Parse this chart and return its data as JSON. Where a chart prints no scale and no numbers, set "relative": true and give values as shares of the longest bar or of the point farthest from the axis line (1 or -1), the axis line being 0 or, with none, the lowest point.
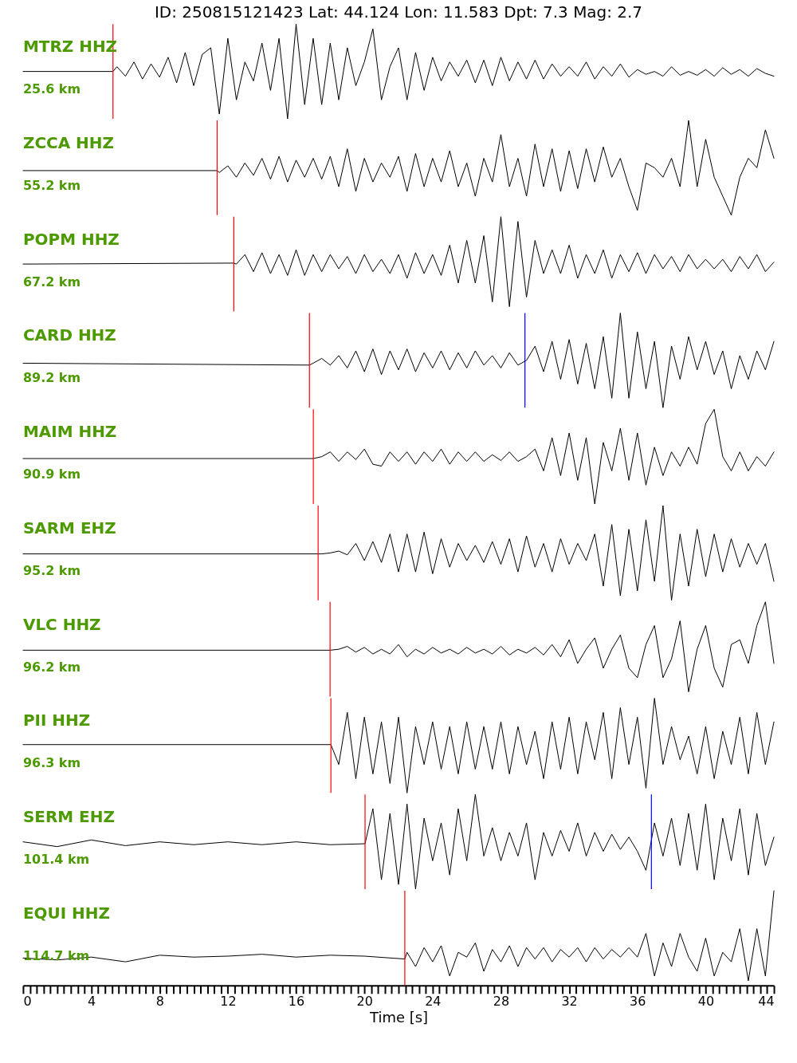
{
  "chart_data": [
    {
      "type": "line",
      "relative": true,
      "title": "ID: 250815121423 Lat:  44.124 Lon:  11.583 Dpt:     7.3 Mag:   2.7",
      "xlim": [
        0,
        44
      ],
      "tick_labels": false,
      "annotations": [
        "MTRZ HHZ",
        "25.6 km"
      ],
      "ref_lines": [
        {
          "axis": "x",
          "value": 5.27,
          "color": "#ff0000"
        }
      ],
      "series": [
        {
          "color": "#000000",
          "x": [
            0,
            5.27,
            5.5,
            6,
            6.5,
            7,
            7.5,
            8,
            8.5,
            9,
            9.5,
            10,
            10.5,
            11,
            11.5,
            12,
            12.5,
            13,
            13.5,
            14,
            14.5,
            15,
            15.5,
            16,
            16.5,
            17,
            17.5,
            18,
            18.5,
            19,
            19.5,
            20,
            20.5,
            21,
            21.5,
            22,
            22.5,
            23,
            23.5,
            24,
            24.5,
            25,
            25.5,
            26,
            26.5,
            27,
            27.5,
            28,
            28.5,
            29,
            29.5,
            30,
            30.5,
            31,
            31.5,
            32,
            32.5,
            33,
            33.5,
            34,
            34.5,
            35,
            35.5,
            36,
            36.5,
            37,
            37.5,
            38,
            38.5,
            39,
            39.5,
            40,
            40.5,
            41,
            41.5,
            42,
            42.5,
            43,
            43.5,
            44
          ],
          "values": [
            0.5,
            0.5,
            0.55,
            0.45,
            0.6,
            0.42,
            0.58,
            0.44,
            0.65,
            0.38,
            0.7,
            0.35,
            0.68,
            0.75,
            0.05,
            0.85,
            0.2,
            0.6,
            0.4,
            0.8,
            0.3,
            0.85,
            0,
            1,
            0.15,
            0.85,
            0.15,
            0.8,
            0.2,
            0.75,
            0.35,
            0.6,
            0.95,
            0.2,
            0.55,
            0.75,
            0.2,
            0.7,
            0.3,
            0.65,
            0.4,
            0.6,
            0.45,
            0.62,
            0.38,
            0.62,
            0.35,
            0.65,
            0.4,
            0.6,
            0.42,
            0.62,
            0.42,
            0.58,
            0.45,
            0.55,
            0.45,
            0.6,
            0.42,
            0.55,
            0.45,
            0.58,
            0.44,
            0.52,
            0.47,
            0.5,
            0.45,
            0.55,
            0.46,
            0.5,
            0.46,
            0.52,
            0.45,
            0.54,
            0.47,
            0.52,
            0.45,
            0.53,
            0.48,
            0.45
          ]
        }
      ]
    },
    {
      "type": "line",
      "relative": true,
      "xlim": [
        0,
        44
      ],
      "tick_labels": false,
      "annotations": [
        "ZCCA HHZ",
        "55.2 km"
      ],
      "ref_lines": [
        {
          "axis": "x",
          "value": 11.37,
          "color": "#ff0000"
        }
      ],
      "series": [
        {
          "color": "#000000",
          "x": [
            0,
            11.37,
            11.5,
            12,
            12.5,
            13,
            13.5,
            14,
            14.5,
            15,
            15.5,
            16,
            16.5,
            17,
            17.5,
            18,
            18.5,
            19,
            19.5,
            20,
            20.5,
            21,
            21.5,
            22,
            22.5,
            23,
            23.5,
            24,
            24.5,
            25,
            25.5,
            26,
            26.5,
            27,
            27.5,
            28,
            28.5,
            29,
            29.5,
            30,
            30.5,
            31,
            31.5,
            32,
            32.5,
            33,
            33.5,
            34,
            34.5,
            35,
            35.5,
            36,
            36.5,
            37,
            37.5,
            38,
            38.5,
            39,
            39.5,
            40,
            40.5,
            41,
            41.5,
            42,
            42.5,
            43,
            43.5,
            44
          ],
          "values": [
            0.47,
            0.47,
            0.45,
            0.52,
            0.4,
            0.55,
            0.42,
            0.6,
            0.38,
            0.62,
            0.35,
            0.58,
            0.4,
            0.6,
            0.38,
            0.62,
            0.3,
            0.7,
            0.25,
            0.6,
            0.35,
            0.55,
            0.4,
            0.62,
            0.25,
            0.65,
            0.3,
            0.6,
            0.35,
            0.68,
            0.3,
            0.55,
            0.2,
            0.6,
            0.35,
            0.85,
            0.3,
            0.6,
            0.2,
            0.75,
            0.3,
            0.7,
            0.25,
            0.68,
            0.28,
            0.7,
            0.35,
            0.72,
            0.4,
            0.6,
            0.3,
            0.05,
            0.55,
            0.5,
            0.4,
            0.6,
            0.3,
            1,
            0.3,
            0.8,
            0.4,
            0.2,
            0,
            0.4,
            0.6,
            0.5,
            0.9,
            0.6
          ]
        }
      ]
    },
    {
      "type": "line",
      "relative": true,
      "xlim": [
        0,
        44
      ],
      "tick_labels": false,
      "annotations": [
        "POPM HHZ",
        "67.2 km"
      ],
      "ref_lines": [
        {
          "axis": "x",
          "value": 12.35,
          "color": "#ff0000"
        }
      ],
      "series": [
        {
          "color": "#000000",
          "x": [
            0,
            12.35,
            12.5,
            13,
            13.5,
            14,
            14.5,
            15,
            15.5,
            16,
            16.5,
            17,
            17.5,
            18,
            18.5,
            19,
            19.5,
            20,
            20.5,
            21,
            21.5,
            22,
            22.5,
            23,
            23.5,
            24,
            24.5,
            25,
            25.5,
            26,
            26.5,
            27,
            27.5,
            28,
            28.5,
            29,
            29.5,
            30,
            30.5,
            31,
            31.5,
            32,
            32.5,
            33,
            33.5,
            34,
            34.5,
            35,
            35.5,
            36,
            36.5,
            37,
            37.5,
            38,
            38.5,
            39,
            39.5,
            40,
            40.5,
            41,
            41.5,
            42,
            42.5,
            43,
            43.5,
            44
          ],
          "values": [
            0.5,
            0.51,
            0.5,
            0.6,
            0.42,
            0.62,
            0.4,
            0.6,
            0.38,
            0.65,
            0.38,
            0.6,
            0.42,
            0.6,
            0.45,
            0.58,
            0.4,
            0.6,
            0.42,
            0.55,
            0.4,
            0.6,
            0.35,
            0.62,
            0.4,
            0.6,
            0.38,
            0.7,
            0.3,
            0.75,
            0.3,
            0.8,
            0.1,
            1,
            0.05,
            0.95,
            0.15,
            0.75,
            0.4,
            0.65,
            0.4,
            0.7,
            0.35,
            0.6,
            0.4,
            0.65,
            0.35,
            0.6,
            0.42,
            0.62,
            0.4,
            0.6,
            0.45,
            0.58,
            0.42,
            0.6,
            0.45,
            0.55,
            0.45,
            0.55,
            0.42,
            0.58,
            0.45,
            0.6,
            0.42,
            0.52
          ]
        }
      ]
    },
    {
      "type": "line",
      "relative": true,
      "xlim": [
        0,
        44
      ],
      "tick_labels": false,
      "annotations": [
        "CARD HHZ",
        "89.2 km"
      ],
      "ref_lines": [
        {
          "axis": "x",
          "value": 16.78,
          "color": "#ff0000"
        },
        {
          "axis": "x",
          "value": 29.41,
          "color": "#0000ff"
        }
      ],
      "series": [
        {
          "color": "#000000",
          "x": [
            0,
            16.78,
            17,
            17.5,
            18,
            18.5,
            19,
            19.5,
            20,
            20.5,
            21,
            21.5,
            22,
            22.5,
            23,
            23.5,
            24,
            24.5,
            25,
            25.5,
            26,
            26.5,
            27,
            27.5,
            28,
            28.5,
            29,
            29.5,
            30,
            30.5,
            31,
            31.5,
            32,
            32.5,
            33,
            33.5,
            34,
            34.5,
            35,
            35.5,
            36,
            36.5,
            37,
            37.5,
            38,
            38.5,
            39,
            39.5,
            40,
            40.5,
            41,
            41.5,
            42,
            42.5,
            43,
            43.5,
            44
          ],
          "values": [
            0.47,
            0.45,
            0.47,
            0.52,
            0.45,
            0.55,
            0.42,
            0.6,
            0.38,
            0.62,
            0.35,
            0.6,
            0.4,
            0.62,
            0.38,
            0.58,
            0.42,
            0.6,
            0.4,
            0.58,
            0.42,
            0.6,
            0.45,
            0.55,
            0.42,
            0.58,
            0.45,
            0.5,
            0.65,
            0.38,
            0.7,
            0.3,
            0.72,
            0.25,
            0.68,
            0.2,
            0.75,
            0.1,
            1,
            0.1,
            0.8,
            0.2,
            0.7,
            0,
            0.65,
            0.3,
            0.75,
            0.4,
            0.7,
            0.35,
            0.6,
            0.2,
            0.55,
            0.3,
            0.6,
            0.4,
            0.7
          ]
        }
      ]
    },
    {
      "type": "line",
      "relative": true,
      "xlim": [
        0,
        44
      ],
      "tick_labels": false,
      "annotations": [
        "MAIM HHZ",
        "90.9 km"
      ],
      "ref_lines": [
        {
          "axis": "x",
          "value": 17.01,
          "color": "#ff0000"
        }
      ],
      "series": [
        {
          "color": "#000000",
          "x": [
            0,
            17.01,
            17.5,
            18,
            18.5,
            19,
            19.5,
            20,
            20.5,
            21,
            21.5,
            22,
            22.5,
            23,
            23.5,
            24,
            24.5,
            25,
            25.5,
            26,
            26.5,
            27,
            27.5,
            28,
            28.5,
            29,
            29.5,
            30,
            30.5,
            31,
            31.5,
            32,
            32.5,
            33,
            33.5,
            34,
            34.5,
            35,
            35.5,
            36,
            36.5,
            37,
            37.5,
            38,
            38.5,
            39,
            39.5,
            40,
            40.5,
            41,
            41.5,
            42,
            42.5,
            43,
            43.5,
            44
          ],
          "values": [
            0.48,
            0.48,
            0.5,
            0.55,
            0.45,
            0.55,
            0.47,
            0.58,
            0.42,
            0.4,
            0.55,
            0.45,
            0.55,
            0.42,
            0.55,
            0.45,
            0.58,
            0.42,
            0.55,
            0.45,
            0.55,
            0.45,
            0.52,
            0.46,
            0.55,
            0.45,
            0.5,
            0.58,
            0.35,
            0.7,
            0.3,
            0.75,
            0.25,
            0.7,
            0,
            0.65,
            0.35,
            0.8,
            0.25,
            0.75,
            0.2,
            0.6,
            0.3,
            0.55,
            0.4,
            0.6,
            0.42,
            0.85,
            1,
            0.5,
            0.35,
            0.55,
            0.35,
            0.5,
            0.4,
            0.55
          ]
        }
      ]
    },
    {
      "type": "line",
      "relative": true,
      "xlim": [
        0,
        44
      ],
      "tick_labels": false,
      "annotations": [
        "SARM EHZ",
        "95.2 km"
      ],
      "ref_lines": [
        {
          "axis": "x",
          "value": 17.29,
          "color": "#ff0000"
        }
      ],
      "series": [
        {
          "color": "#000000",
          "x": [
            0,
            17.29,
            17.5,
            18,
            18.5,
            19,
            19.5,
            20,
            20.5,
            21,
            21.5,
            22,
            22.5,
            23,
            23.5,
            24,
            24.5,
            25,
            25.5,
            26,
            26.5,
            27,
            27.5,
            28,
            28.5,
            29,
            29.5,
            30,
            30.5,
            31,
            31.5,
            32,
            32.5,
            33,
            33.5,
            34,
            34.5,
            35,
            35.5,
            36,
            36.5,
            37,
            37.5,
            38,
            38.5,
            39,
            39.5,
            40,
            40.5,
            41,
            41.5,
            42,
            42.5,
            43,
            43.5,
            44
          ],
          "values": [
            0.49,
            0.49,
            0.49,
            0.5,
            0.52,
            0.48,
            0.6,
            0.42,
            0.62,
            0.4,
            0.7,
            0.3,
            0.7,
            0.3,
            0.72,
            0.28,
            0.65,
            0.35,
            0.6,
            0.42,
            0.58,
            0.4,
            0.62,
            0.38,
            0.65,
            0.3,
            0.68,
            0.35,
            0.6,
            0.3,
            0.65,
            0.38,
            0.6,
            0.42,
            0.7,
            0.15,
            0.8,
            0.05,
            0.75,
            0.1,
            0.85,
            0.2,
            1,
            0,
            0.7,
            0.15,
            0.75,
            0.25,
            0.7,
            0.3,
            0.65,
            0.35,
            0.6,
            0.38,
            0.6,
            0.2
          ]
        }
      ]
    },
    {
      "type": "line",
      "relative": true,
      "xlim": [
        0,
        44
      ],
      "tick_labels": false,
      "annotations": [
        "VLC HHZ",
        "96.2 km"
      ],
      "ref_lines": [
        {
          "axis": "x",
          "value": 17.99,
          "color": "#ff0000"
        }
      ],
      "series": [
        {
          "color": "#000000",
          "x": [
            0,
            17.99,
            18,
            18.5,
            19,
            19.5,
            20,
            20.5,
            21,
            21.5,
            22,
            22.5,
            23,
            23.5,
            24,
            24.5,
            25,
            25.5,
            26,
            26.5,
            27,
            27.5,
            28,
            28.5,
            29,
            29.5,
            30,
            30.5,
            31,
            31.5,
            32,
            32.5,
            33,
            33.5,
            34,
            34.5,
            35,
            35.5,
            36,
            36.5,
            37,
            37.5,
            38,
            38.5,
            39,
            39.5,
            40,
            40.5,
            41,
            41.5,
            42,
            42.5,
            43,
            43.5,
            44
          ],
          "values": [
            0.49,
            0.49,
            0.49,
            0.5,
            0.53,
            0.47,
            0.52,
            0.45,
            0.5,
            0.45,
            0.55,
            0.42,
            0.5,
            0.45,
            0.52,
            0.46,
            0.5,
            0.45,
            0.52,
            0.46,
            0.5,
            0.45,
            0.53,
            0.44,
            0.5,
            0.46,
            0.52,
            0.44,
            0.55,
            0.42,
            0.6,
            0.35,
            0.5,
            0.62,
            0.3,
            0.5,
            0.65,
            0.3,
            0.2,
            0.55,
            0.75,
            0.2,
            0.4,
            0.8,
            0.05,
            0.5,
            0.75,
            0.3,
            0.1,
            0.55,
            0.6,
            0.35,
            0.75,
            1,
            0.35
          ]
        }
      ]
    },
    {
      "type": "line",
      "relative": true,
      "xlim": [
        0,
        44
      ],
      "tick_labels": false,
      "annotations": [
        "PII HHZ",
        "96.3 km"
      ],
      "ref_lines": [
        {
          "axis": "x",
          "value": 18.04,
          "color": "#ff0000"
        }
      ],
      "series": [
        {
          "color": "#000000",
          "x": [
            0,
            18.04,
            18.5,
            19,
            19.5,
            20,
            20.5,
            21,
            21.5,
            22,
            22.5,
            23,
            23.5,
            24,
            24.5,
            25,
            25.5,
            26,
            26.5,
            27,
            27.5,
            28,
            28.5,
            29,
            29.5,
            30,
            30.5,
            31,
            31.5,
            32,
            32.5,
            33,
            33.5,
            34,
            34.5,
            35,
            35.5,
            36,
            36.5,
            37,
            37.5,
            38,
            38.5,
            39,
            39.5,
            40,
            40.5,
            41,
            41.5,
            42,
            42.5,
            43,
            43.5,
            44
          ],
          "values": [
            0.51,
            0.51,
            0.3,
            0.85,
            0.15,
            0.8,
            0.2,
            0.75,
            0.1,
            0.8,
            0,
            0.7,
            0.3,
            0.75,
            0.25,
            0.7,
            0.2,
            0.75,
            0.25,
            0.7,
            0.25,
            0.75,
            0.2,
            0.7,
            0.3,
            0.65,
            0.15,
            0.75,
            0.25,
            0.8,
            0.2,
            0.75,
            0.35,
            0.85,
            0.15,
            0.9,
            0.3,
            0.8,
            0.05,
            1,
            0.3,
            0.7,
            0.35,
            0.6,
            0.2,
            0.7,
            0.15,
            0.65,
            0.3,
            0.8,
            0.2,
            0.85,
            0.3,
            0.75
          ]
        }
      ]
    },
    {
      "type": "line",
      "relative": true,
      "xlim": [
        0,
        44
      ],
      "tick_labels": false,
      "annotations": [
        "SERM EHZ",
        "101.4 km"
      ],
      "ref_lines": [
        {
          "axis": "x",
          "value": 20.04,
          "color": "#ff0000"
        },
        {
          "axis": "x",
          "value": 36.82,
          "color": "#0000ff"
        }
      ],
      "series": [
        {
          "color": "#000000",
          "x": [
            0,
            2,
            4,
            6,
            8,
            10,
            12,
            14,
            16,
            18,
            20.04,
            20.5,
            21,
            21.5,
            22,
            22.5,
            23,
            23.5,
            24,
            24.5,
            25,
            25.5,
            26,
            26.5,
            27,
            27.5,
            28,
            28.5,
            29,
            29.5,
            30,
            30.5,
            31,
            31.5,
            32,
            32.5,
            33,
            33.5,
            34,
            34.5,
            35,
            35.5,
            36,
            36.5,
            37,
            37.5,
            38,
            38.5,
            39,
            39.5,
            40,
            40.5,
            41,
            41.5,
            42,
            42.5,
            43,
            43.5,
            44
          ],
          "values": [
            0.5,
            0.45,
            0.52,
            0.46,
            0.5,
            0.47,
            0.5,
            0.47,
            0.5,
            0.47,
            0.48,
            0.85,
            0.1,
            0.8,
            0.05,
            0.9,
            0,
            0.75,
            0.3,
            0.7,
            0.15,
            0.85,
            0.3,
            1,
            0.35,
            0.65,
            0.3,
            0.6,
            0.35,
            0.7,
            0.1,
            0.6,
            0.35,
            0.62,
            0.4,
            0.7,
            0.35,
            0.6,
            0.4,
            0.58,
            0.42,
            0.55,
            0.4,
            0.2,
            0.7,
            0.35,
            0.75,
            0.25,
            0.8,
            0.2,
            0.9,
            0.1,
            0.75,
            0.3,
            0.85,
            0.15,
            0.8,
            0.25,
            0.55
          ]
        }
      ]
    },
    {
      "type": "line",
      "relative": true,
      "xlim": [
        0,
        44
      ],
      "tick_labels": "x",
      "xlabel": "Time [s]",
      "annotations": [
        "EQUI HHZ",
        "114.7 km"
      ],
      "ref_lines": [
        {
          "axis": "x",
          "value": 22.37,
          "color": "#ff0000"
        }
      ],
      "xticks": [
        0,
        {
          "value": 0.4,
          "label": null
        },
        {
          "value": 0.8,
          "label": null
        },
        {
          "value": 1.2,
          "label": null
        },
        {
          "value": 1.6,
          "label": null
        },
        {
          "value": 2,
          "label": null
        },
        {
          "value": 2.4,
          "label": null
        },
        {
          "value": 2.8,
          "label": null
        },
        {
          "value": 3.2,
          "label": null
        },
        {
          "value": 3.6,
          "label": null
        },
        4,
        {
          "value": 4.4,
          "label": null
        },
        {
          "value": 4.8,
          "label": null
        },
        {
          "value": 5.2,
          "label": null
        },
        {
          "value": 5.6,
          "label": null
        },
        {
          "value": 6,
          "label": null
        },
        {
          "value": 6.4,
          "label": null
        },
        {
          "value": 6.8,
          "label": null
        },
        {
          "value": 7.2,
          "label": null
        },
        {
          "value": 7.6,
          "label": null
        },
        8,
        {
          "value": 8.4,
          "label": null
        },
        {
          "value": 8.8,
          "label": null
        },
        {
          "value": 9.2,
          "label": null
        },
        {
          "value": 9.6,
          "label": null
        },
        {
          "value": 10,
          "label": null
        },
        {
          "value": 10.4,
          "label": null
        },
        {
          "value": 10.8,
          "label": null
        },
        {
          "value": 11.2,
          "label": null
        },
        {
          "value": 11.6,
          "label": null
        },
        12,
        {
          "value": 12.4,
          "label": null
        },
        {
          "value": 12.8,
          "label": null
        },
        {
          "value": 13.2,
          "label": null
        },
        {
          "value": 13.6,
          "label": null
        },
        {
          "value": 14,
          "label": null
        },
        {
          "value": 14.4,
          "label": null
        },
        {
          "value": 14.8,
          "label": null
        },
        {
          "value": 15.2,
          "label": null
        },
        {
          "value": 15.6,
          "label": null
        },
        16,
        {
          "value": 16.4,
          "label": null
        },
        {
          "value": 16.8,
          "label": null
        },
        {
          "value": 17.2,
          "label": null
        },
        {
          "value": 17.6,
          "label": null
        },
        {
          "value": 18,
          "label": null
        },
        {
          "value": 18.4,
          "label": null
        },
        {
          "value": 18.8,
          "label": null
        },
        {
          "value": 19.2,
          "label": null
        },
        {
          "value": 19.6,
          "label": null
        },
        20,
        {
          "value": 20.4,
          "label": null
        },
        {
          "value": 20.8,
          "label": null
        },
        {
          "value": 21.2,
          "label": null
        },
        {
          "value": 21.6,
          "label": null
        },
        {
          "value": 22,
          "label": null
        },
        {
          "value": 22.4,
          "label": null
        },
        {
          "value": 22.8,
          "label": null
        },
        {
          "value": 23.2,
          "label": null
        },
        {
          "value": 23.6,
          "label": null
        },
        24,
        {
          "value": 24.4,
          "label": null
        },
        {
          "value": 24.8,
          "label": null
        },
        {
          "value": 25.2,
          "label": null
        },
        {
          "value": 25.6,
          "label": null
        },
        {
          "value": 26,
          "label": null
        },
        {
          "value": 26.4,
          "label": null
        },
        {
          "value": 26.8,
          "label": null
        },
        {
          "value": 27.2,
          "label": null
        },
        {
          "value": 27.6,
          "label": null
        },
        28,
        {
          "value": 28.4,
          "label": null
        },
        {
          "value": 28.8,
          "label": null
        },
        {
          "value": 29.2,
          "label": null
        },
        {
          "value": 29.6,
          "label": null
        },
        {
          "value": 30,
          "label": null
        },
        {
          "value": 30.4,
          "label": null
        },
        {
          "value": 30.8,
          "label": null
        },
        {
          "value": 31.2,
          "label": null
        },
        {
          "value": 31.6,
          "label": null
        },
        32,
        {
          "value": 32.4,
          "label": null
        },
        {
          "value": 32.8,
          "label": null
        },
        {
          "value": 33.2,
          "label": null
        },
        {
          "value": 33.6,
          "label": null
        },
        {
          "value": 34,
          "label": null
        },
        {
          "value": 34.4,
          "label": null
        },
        {
          "value": 34.8,
          "label": null
        },
        {
          "value": 35.2,
          "label": null
        },
        {
          "value": 35.6,
          "label": null
        },
        36,
        {
          "value": 36.4,
          "label": null
        },
        {
          "value": 36.8,
          "label": null
        },
        {
          "value": 37.2,
          "label": null
        },
        {
          "value": 37.6,
          "label": null
        },
        {
          "value": 38,
          "label": null
        },
        {
          "value": 38.4,
          "label": null
        },
        {
          "value": 38.8,
          "label": null
        },
        {
          "value": 39.2,
          "label": null
        },
        {
          "value": 39.6,
          "label": null
        },
        40,
        {
          "value": 40.4,
          "label": null
        },
        {
          "value": 40.8,
          "label": null
        },
        {
          "value": 41.2,
          "label": null
        },
        {
          "value": 41.6,
          "label": null
        },
        {
          "value": 42,
          "label": null
        },
        {
          "value": 42.4,
          "label": null
        },
        {
          "value": 42.8,
          "label": null
        },
        {
          "value": 43.2,
          "label": null
        },
        {
          "value": 43.6,
          "label": null
        },
        44
      ],
      "series": [
        {
          "color": "#000000",
          "x": [
            0,
            2,
            4,
            6,
            8,
            10,
            12,
            14,
            16,
            18,
            20,
            22.37,
            22.5,
            23,
            23.5,
            24,
            24.5,
            25,
            25.5,
            26,
            26.5,
            27,
            27.5,
            28,
            28.5,
            29,
            29.5,
            30,
            30.5,
            31,
            31.5,
            32,
            32.5,
            33,
            33.5,
            34,
            34.5,
            35,
            35.5,
            36,
            36.5,
            37,
            37.5,
            38,
            38.5,
            39,
            39.5,
            40,
            40.5,
            41,
            41.5,
            42,
            42.5,
            43,
            43.5,
            44
          ],
          "values": [
            0.29,
            0.27,
            0.3,
            0.25,
            0.32,
            0.3,
            0.31,
            0.33,
            0.3,
            0.32,
            0.31,
            0.28,
            0.35,
            0.2,
            0.4,
            0.25,
            0.42,
            0.1,
            0.35,
            0.3,
            0.45,
            0.15,
            0.38,
            0.25,
            0.42,
            0.2,
            0.4,
            0.28,
            0.4,
            0.25,
            0.38,
            0.3,
            0.4,
            0.25,
            0.4,
            0.28,
            0.38,
            0.3,
            0.4,
            0.3,
            0.55,
            0.1,
            0.45,
            0.2,
            0.55,
            0.3,
            0.15,
            0.5,
            0.1,
            0.35,
            0.25,
            0.6,
            0.05,
            0.6,
            0.1,
            1
          ]
        }
      ]
    }
  ]
}
